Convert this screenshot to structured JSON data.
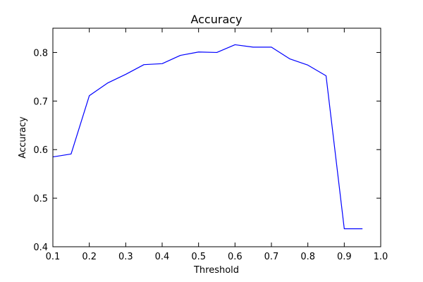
{
  "chart_data": {
    "type": "line",
    "title": "Accuracy",
    "xlabel": "Threshold",
    "ylabel": "Accuracy",
    "xlim": [
      0.1,
      1.0
    ],
    "ylim": [
      0.4,
      0.85
    ],
    "grid": false,
    "x_ticks": [
      "0.1",
      "0.2",
      "0.3",
      "0.4",
      "0.5",
      "0.6",
      "0.7",
      "0.8",
      "0.9",
      "1.0"
    ],
    "y_ticks": [
      "0.4",
      "0.5",
      "0.6",
      "0.7",
      "0.8"
    ],
    "line_color": "#0000ff",
    "series": [
      {
        "x": [
          0.1,
          0.15,
          0.2,
          0.25,
          0.3,
          0.35,
          0.4,
          0.45,
          0.5,
          0.55,
          0.6,
          0.65,
          0.7,
          0.75,
          0.8,
          0.85,
          0.9,
          0.95
        ],
        "values": [
          0.585,
          0.591,
          0.711,
          0.737,
          0.755,
          0.775,
          0.777,
          0.794,
          0.801,
          0.8,
          0.816,
          0.811,
          0.811,
          0.787,
          0.774,
          0.752,
          0.437,
          0.437
        ]
      }
    ]
  }
}
